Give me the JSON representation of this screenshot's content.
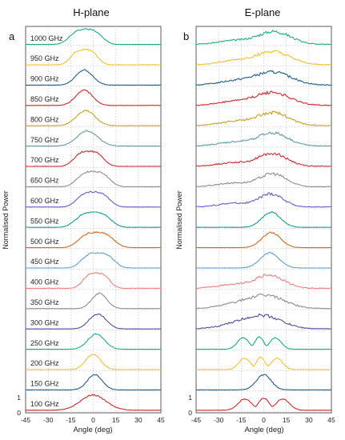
{
  "figure": {
    "ylabel": "Normalised Power",
    "ytick_labels": [
      "0",
      "1"
    ]
  },
  "chart_data": [
    {
      "type": "line",
      "title": "H-plane",
      "panel_label": "a",
      "xlabel": "Angle (deg)",
      "xlim": [
        -45,
        45
      ],
      "xticks": [
        -45,
        -30,
        -15,
        0,
        15,
        30,
        45
      ],
      "grid": true,
      "series": [
        {
          "name": "100 GHz",
          "color": "#d62728",
          "peak_deg": 0,
          "spread_deg": 12,
          "shape": "bump"
        },
        {
          "name": "150 GHz",
          "color": "#1f5c8c",
          "peak_deg": 1,
          "spread_deg": 8,
          "shape": "peak"
        },
        {
          "name": "200 GHz",
          "color": "#f2c12e",
          "peak_deg": 0,
          "spread_deg": 8,
          "shape": "peak"
        },
        {
          "name": "250 GHz",
          "color": "#17b07a",
          "peak_deg": 2,
          "spread_deg": 9,
          "shape": "peak"
        },
        {
          "name": "300 GHz",
          "color": "#554a9e",
          "peak_deg": 3,
          "spread_deg": 9,
          "shape": "peak"
        },
        {
          "name": "350 GHz",
          "color": "#8c8c8c",
          "peak_deg": 4,
          "spread_deg": 8,
          "shape": "peak"
        },
        {
          "name": "400 GHz",
          "color": "#f08080",
          "peak_deg": 2,
          "spread_deg": 10,
          "shape": "flat"
        },
        {
          "name": "450 GHz",
          "color": "#5aa0d8",
          "peak_deg": 3,
          "spread_deg": 12,
          "shape": "flat"
        },
        {
          "name": "500 GHz",
          "color": "#d2691e",
          "peak_deg": 2,
          "spread_deg": 13,
          "shape": "flat"
        },
        {
          "name": "550 GHz",
          "color": "#0f9c8f",
          "peak_deg": 0,
          "spread_deg": 13,
          "shape": "flat"
        },
        {
          "name": "600 GHz",
          "color": "#6a5acd",
          "peak_deg": 0,
          "spread_deg": 12,
          "shape": "flat"
        },
        {
          "name": "650 GHz",
          "color": "#8c8c8c",
          "peak_deg": 0,
          "spread_deg": 12,
          "shape": "flat"
        },
        {
          "name": "700 GHz",
          "color": "#d62728",
          "peak_deg": -3,
          "spread_deg": 11,
          "shape": "flat"
        },
        {
          "name": "750 GHz",
          "color": "#5f9ea0",
          "peak_deg": -4,
          "spread_deg": 11,
          "shape": "peak"
        },
        {
          "name": "800 GHz",
          "color": "#c9a020",
          "peak_deg": -5,
          "spread_deg": 10,
          "shape": "peak"
        },
        {
          "name": "850 GHz",
          "color": "#d62728",
          "peak_deg": -6,
          "spread_deg": 9,
          "shape": "peak"
        },
        {
          "name": "900 GHz",
          "color": "#1f5c8c",
          "peak_deg": -6,
          "spread_deg": 9,
          "shape": "peak"
        },
        {
          "name": "950 GHz",
          "color": "#f2c12e",
          "peak_deg": -6,
          "spread_deg": 10,
          "shape": "flat"
        },
        {
          "name": "1000 GHz",
          "color": "#17b07a",
          "peak_deg": -5,
          "spread_deg": 12,
          "shape": "flat"
        }
      ]
    },
    {
      "type": "line",
      "title": "E-plane",
      "panel_label": "b",
      "xlabel": "Angle (deg)",
      "xlim": [
        -45,
        45
      ],
      "xticks": [
        -45,
        -30,
        -15,
        0,
        15,
        30,
        45
      ],
      "grid": true,
      "series": [
        {
          "name": "100 GHz",
          "color": "#d62728",
          "peak_deg": 0,
          "spread_deg": 14,
          "shape": "double"
        },
        {
          "name": "150 GHz",
          "color": "#1f5c8c",
          "peak_deg": 0,
          "spread_deg": 8,
          "shape": "peak"
        },
        {
          "name": "200 GHz",
          "color": "#f2c12e",
          "peak_deg": -2,
          "spread_deg": 12,
          "shape": "double"
        },
        {
          "name": "250 GHz",
          "color": "#17b07a",
          "peak_deg": -3,
          "spread_deg": 12,
          "shape": "double"
        },
        {
          "name": "300 GHz",
          "color": "#554a9e",
          "peak_deg": 0,
          "spread_deg": 18,
          "shape": "noisy"
        },
        {
          "name": "350 GHz",
          "color": "#8c8c8c",
          "peak_deg": 2,
          "spread_deg": 18,
          "shape": "noisy"
        },
        {
          "name": "400 GHz",
          "color": "#f08080",
          "peak_deg": 4,
          "spread_deg": 14,
          "shape": "noisy"
        },
        {
          "name": "450 GHz",
          "color": "#5aa0d8",
          "peak_deg": 4,
          "spread_deg": 10,
          "shape": "peak"
        },
        {
          "name": "500 GHz",
          "color": "#d2691e",
          "peak_deg": 5,
          "spread_deg": 10,
          "shape": "peak"
        },
        {
          "name": "550 GHz",
          "color": "#0f9c8f",
          "peak_deg": 5,
          "spread_deg": 10,
          "shape": "peak"
        },
        {
          "name": "600 GHz",
          "color": "#6a5acd",
          "peak_deg": 5,
          "spread_deg": 12,
          "shape": "noisy"
        },
        {
          "name": "650 GHz",
          "color": "#8c8c8c",
          "peak_deg": 6,
          "spread_deg": 13,
          "shape": "noisy"
        },
        {
          "name": "700 GHz",
          "color": "#d62728",
          "peak_deg": 6,
          "spread_deg": 14,
          "shape": "noisy"
        },
        {
          "name": "750 GHz",
          "color": "#5f9ea0",
          "peak_deg": 6,
          "spread_deg": 15,
          "shape": "noisy"
        },
        {
          "name": "800 GHz",
          "color": "#c9a020",
          "peak_deg": 6,
          "spread_deg": 16,
          "shape": "noisy"
        },
        {
          "name": "850 GHz",
          "color": "#d62728",
          "peak_deg": 6,
          "spread_deg": 17,
          "shape": "noisy"
        },
        {
          "name": "900 GHz",
          "color": "#1f5c8c",
          "peak_deg": 6,
          "spread_deg": 18,
          "shape": "noisy"
        },
        {
          "name": "950 GHz",
          "color": "#f2c12e",
          "peak_deg": 6,
          "spread_deg": 17,
          "shape": "noisy"
        },
        {
          "name": "1000 GHz",
          "color": "#17b07a",
          "peak_deg": 7,
          "spread_deg": 16,
          "shape": "noisy"
        }
      ]
    }
  ]
}
